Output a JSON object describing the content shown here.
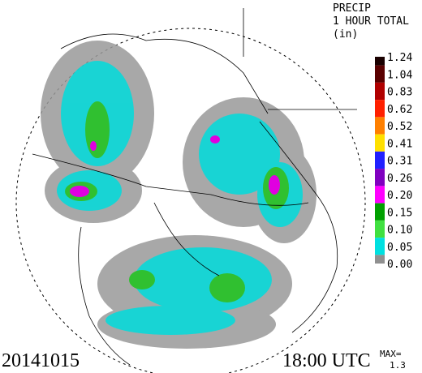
{
  "header": {
    "title": [
      "PRECIP",
      "1 HOUR TOTAL",
      "(in)"
    ]
  },
  "legend": [
    {
      "label": "1.24",
      "color": "#1a0000"
    },
    {
      "label": "1.04",
      "color": "#5a0000"
    },
    {
      "label": "0.83",
      "color": "#b00000"
    },
    {
      "label": "0.62",
      "color": "#ff2000"
    },
    {
      "label": "0.52",
      "color": "#ff8000"
    },
    {
      "label": "0.41",
      "color": "#ffe000"
    },
    {
      "label": "0.31",
      "color": "#2020ff"
    },
    {
      "label": "0.26",
      "color": "#8000c0"
    },
    {
      "label": "0.20",
      "color": "#ff00ff"
    },
    {
      "label": "0.15",
      "color": "#00a000"
    },
    {
      "label": "0.10",
      "color": "#40e040"
    },
    {
      "label": "0.05",
      "color": "#00e0e0"
    },
    {
      "label": "0.00",
      "color": "#909090"
    }
  ],
  "footer": {
    "date": "20141015",
    "time": "18:00 UTC",
    "max_label": "MAX=",
    "max_value": "1.3"
  }
}
